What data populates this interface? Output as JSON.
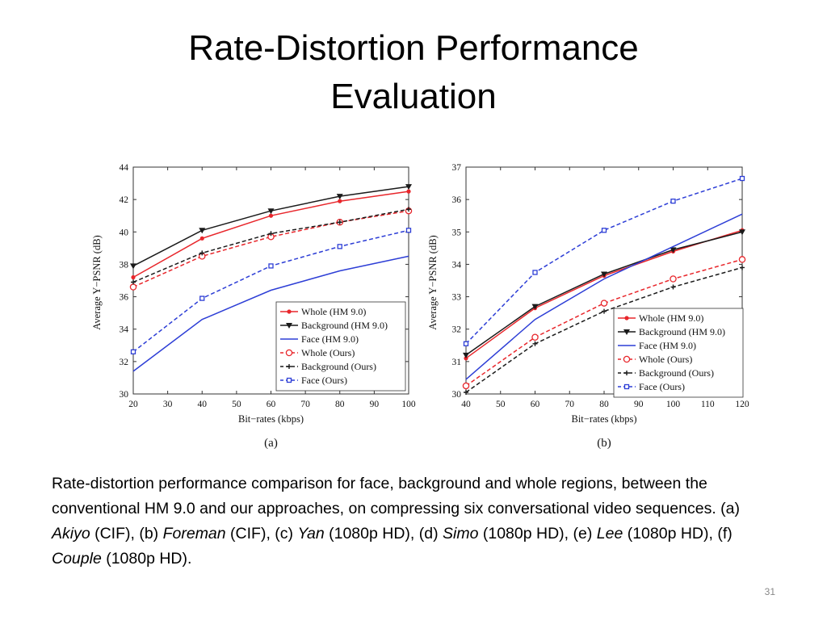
{
  "slide": {
    "title_line1": "Rate-Distortion Performance",
    "title_line2": "Evaluation",
    "caption": {
      "t1": "Rate-distortion performance comparison for face, background and whole regions, between the conventional HM 9.0 and our approaches, on compressing six conversational video sequences. (a) ",
      "i1": "Akiyo",
      "t2": " (CIF), (b) ",
      "i2": "Foreman",
      "t3": " (CIF), (c) ",
      "i3": "Yan",
      "t4": " (1080p HD), (d) ",
      "i4": "Simo",
      "t5": " (1080p HD), (e) ",
      "i5": "Lee",
      "t6": " (1080p HD), (f) ",
      "i6": "Couple",
      "t7": " (1080p HD)."
    },
    "page_number": "31"
  },
  "chart_data": [
    {
      "type": "line",
      "panel_label": "(a)",
      "xlabel": "Bit−rates (kbps)",
      "ylabel": "Average Y−PSNR (dB)",
      "xlim": [
        20,
        100
      ],
      "ylim": [
        30,
        44
      ],
      "xticks": [
        20,
        30,
        40,
        50,
        60,
        70,
        80,
        90,
        100
      ],
      "yticks": [
        30,
        32,
        34,
        36,
        38,
        40,
        42,
        44
      ],
      "grid": false,
      "legend_position": "bottom-right",
      "x": [
        20,
        40,
        60,
        80,
        100
      ],
      "series": [
        {
          "name": "Whole (HM 9.0)",
          "values": [
            37.2,
            39.6,
            41.0,
            41.9,
            42.5
          ],
          "color": "#e8262b",
          "dash": "solid",
          "marker": "dot"
        },
        {
          "name": "Background (HM 9.0)",
          "values": [
            37.9,
            40.1,
            41.3,
            42.2,
            42.8
          ],
          "color": "#1a1a1a",
          "dash": "solid",
          "marker": "triangle-down"
        },
        {
          "name": "Face (HM 9.0)",
          "values": [
            31.4,
            34.6,
            36.4,
            37.6,
            38.5
          ],
          "color": "#2d3ed6",
          "dash": "solid",
          "marker": "none"
        },
        {
          "name": "Whole (Ours)",
          "values": [
            36.6,
            38.5,
            39.7,
            40.6,
            41.3
          ],
          "color": "#e8262b",
          "dash": "dashed",
          "marker": "open-circle"
        },
        {
          "name": "Background (Ours)",
          "values": [
            36.9,
            38.7,
            39.9,
            40.6,
            41.4
          ],
          "color": "#1a1a1a",
          "dash": "dashed",
          "marker": "plus"
        },
        {
          "name": "Face (Ours)",
          "values": [
            32.6,
            35.9,
            37.9,
            39.1,
            40.1
          ],
          "color": "#2d3ed6",
          "dash": "dashed",
          "marker": "square"
        }
      ]
    },
    {
      "type": "line",
      "panel_label": "(b)",
      "xlabel": "Bit−rates (kbps)",
      "ylabel": "Average Y−PSNR (dB)",
      "xlim": [
        40,
        120
      ],
      "ylim": [
        30,
        37
      ],
      "xticks": [
        40,
        50,
        60,
        70,
        80,
        90,
        100,
        110,
        120
      ],
      "yticks": [
        30,
        31,
        32,
        33,
        34,
        35,
        36,
        37
      ],
      "grid": false,
      "legend_position": "bottom-right",
      "x": [
        40,
        60,
        80,
        100,
        120
      ],
      "series": [
        {
          "name": "Whole (HM 9.0)",
          "values": [
            31.1,
            32.65,
            33.65,
            34.4,
            35.05
          ],
          "color": "#e8262b",
          "dash": "solid",
          "marker": "dot"
        },
        {
          "name": "Background (HM 9.0)",
          "values": [
            31.2,
            32.7,
            33.7,
            34.45,
            35.0
          ],
          "color": "#1a1a1a",
          "dash": "solid",
          "marker": "triangle-down"
        },
        {
          "name": "Face (HM 9.0)",
          "values": [
            30.45,
            32.3,
            33.55,
            34.55,
            35.55
          ],
          "color": "#2d3ed6",
          "dash": "solid",
          "marker": "none"
        },
        {
          "name": "Whole (Ours)",
          "values": [
            30.25,
            31.75,
            32.8,
            33.55,
            34.15
          ],
          "color": "#e8262b",
          "dash": "dashed",
          "marker": "open-circle"
        },
        {
          "name": "Background (Ours)",
          "values": [
            30.05,
            31.55,
            32.55,
            33.3,
            33.9
          ],
          "color": "#1a1a1a",
          "dash": "dashed",
          "marker": "plus"
        },
        {
          "name": "Face (Ours)",
          "values": [
            31.55,
            33.75,
            35.05,
            35.95,
            36.65
          ],
          "color": "#2d3ed6",
          "dash": "dashed",
          "marker": "square"
        }
      ]
    }
  ]
}
